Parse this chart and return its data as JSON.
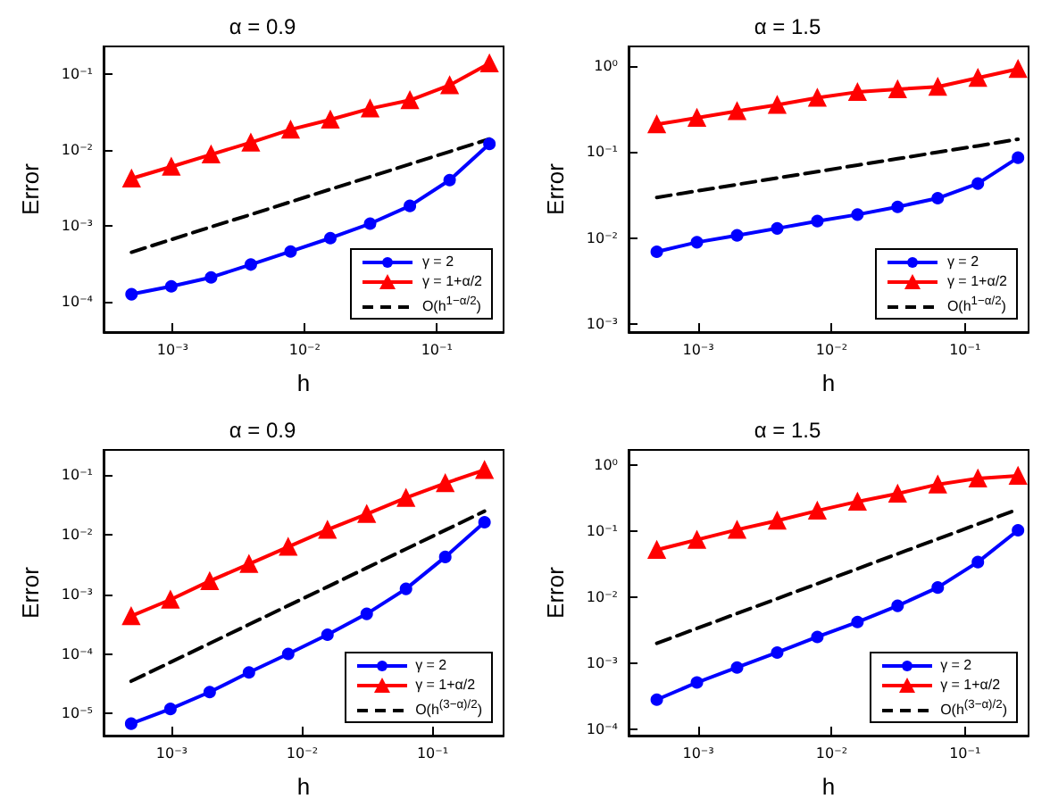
{
  "chart_data": [
    {
      "type": "line",
      "title": "α = 0.9",
      "xlabel": "h",
      "ylabel": "Error",
      "log": "xy",
      "grid": false,
      "legend": "bottom right",
      "x": [
        0.00048828125,
        0.0009765625,
        0.001953125,
        0.00390625,
        0.0078125,
        0.015625,
        0.03125,
        0.0625,
        0.125,
        0.25
      ],
      "xlim": [
        0.0003,
        0.32
      ],
      "ylim": [
        4e-05,
        0.23
      ],
      "xticks": [
        {
          "value": 0.001,
          "label": "10⁻³"
        },
        {
          "value": 0.01,
          "label": "10⁻²"
        },
        {
          "value": 0.1,
          "label": "10⁻¹"
        }
      ],
      "yticks": [
        {
          "value": 0.0001,
          "label": "10⁻⁴"
        },
        {
          "value": 0.001,
          "label": "10⁻³"
        },
        {
          "value": 0.01,
          "label": "10⁻²"
        },
        {
          "value": 0.1,
          "label": "10⁻¹"
        }
      ],
      "series": [
        {
          "name": "γ = 2",
          "color": "#0000ff",
          "marker": "circle",
          "line_style": "solid",
          "values": [
            0.000126,
            0.00016,
            0.00021,
            0.00031,
            0.00046,
            0.00069,
            0.00107,
            0.00183,
            0.004,
            0.012
          ]
        },
        {
          "name": "γ = 1+α/2",
          "color": "#ff0000",
          "marker": "triangle",
          "line_style": "solid",
          "values": [
            0.0042,
            0.006,
            0.0087,
            0.0125,
            0.0185,
            0.025,
            0.035,
            0.045,
            0.071,
            0.138
          ]
        },
        {
          "name": "O(h$^{1−α/2}$)",
          "color": "#000000",
          "marker": "none",
          "line_style": "dashed",
          "values": [
            0.00045,
            0.00066,
            0.00097,
            0.00141,
            0.00207,
            0.00303,
            0.00443,
            0.0065,
            0.0095,
            0.0139
          ]
        }
      ]
    },
    {
      "type": "line",
      "title": "α = 1.5",
      "xlabel": "h",
      "ylabel": "Error",
      "log": "xy",
      "grid": false,
      "legend": "bottom right",
      "x": [
        0.00048828125,
        0.0009765625,
        0.001953125,
        0.00390625,
        0.0078125,
        0.015625,
        0.03125,
        0.0625,
        0.125,
        0.25
      ],
      "xlim": [
        0.0003,
        0.3
      ],
      "ylim": [
        0.0008,
        1.7
      ],
      "xticks": [
        {
          "value": 0.001,
          "label": "10⁻³"
        },
        {
          "value": 0.01,
          "label": "10⁻²"
        },
        {
          "value": 0.1,
          "label": "10⁻¹"
        }
      ],
      "yticks": [
        {
          "value": 0.001,
          "label": "10⁻³"
        },
        {
          "value": 0.01,
          "label": "10⁻²"
        },
        {
          "value": 0.1,
          "label": "10⁻¹"
        },
        {
          "value": 1,
          "label": "10⁰"
        }
      ],
      "series": [
        {
          "name": "γ = 2",
          "color": "#0000ff",
          "marker": "circle",
          "line_style": "solid",
          "values": [
            0.0069,
            0.0089,
            0.0107,
            0.0129,
            0.0157,
            0.0187,
            0.023,
            0.029,
            0.043,
            0.086
          ]
        },
        {
          "name": "γ = 1+α/2",
          "color": "#ff0000",
          "marker": "triangle",
          "line_style": "solid",
          "values": [
            0.21,
            0.25,
            0.3,
            0.355,
            0.43,
            0.5,
            0.54,
            0.575,
            0.73,
            0.93
          ]
        },
        {
          "name": "O(h$^{1−α/2}$)",
          "color": "#000000",
          "marker": "none",
          "line_style": "dashed",
          "values": [
            0.0296,
            0.0352,
            0.0419,
            0.0498,
            0.0592,
            0.0704,
            0.0837,
            0.0996,
            0.118,
            0.141
          ]
        }
      ]
    },
    {
      "type": "line",
      "title": "α = 0.9",
      "xlabel": "h",
      "ylabel": "Error",
      "log": "xy",
      "grid": false,
      "legend": "bottom right",
      "x": [
        0.00048828125,
        0.0009765625,
        0.001953125,
        0.00390625,
        0.0078125,
        0.015625,
        0.03125,
        0.0625,
        0.125,
        0.25
      ],
      "xlim": [
        0.0003,
        0.35
      ],
      "ylim": [
        4.3e-06,
        0.26
      ],
      "xticks": [
        {
          "value": 0.001,
          "label": "10⁻³"
        },
        {
          "value": 0.01,
          "label": "10⁻²"
        },
        {
          "value": 0.1,
          "label": "10⁻¹"
        }
      ],
      "yticks": [
        {
          "value": 1e-05,
          "label": "10⁻⁵"
        },
        {
          "value": 0.0001,
          "label": "10⁻⁴"
        },
        {
          "value": 0.001,
          "label": "10⁻³"
        },
        {
          "value": 0.01,
          "label": "10⁻²"
        },
        {
          "value": 0.1,
          "label": "10⁻¹"
        }
      ],
      "series": [
        {
          "name": "γ = 2",
          "color": "#0000ff",
          "marker": "circle",
          "line_style": "solid",
          "values": [
            6.8e-06,
            1.2e-05,
            2.3e-05,
            4.9e-05,
            0.0001,
            0.00021,
            0.00047,
            0.00123,
            0.0042,
            0.016
          ]
        },
        {
          "name": "γ = 1+α/2",
          "color": "#ff0000",
          "marker": "triangle",
          "line_style": "solid",
          "values": [
            0.00043,
            0.00081,
            0.00166,
            0.0032,
            0.0062,
            0.012,
            0.022,
            0.041,
            0.072,
            0.12
          ]
        },
        {
          "name": "O(h$^{(3−α)/2}$)",
          "color": "#000000",
          "marker": "none",
          "line_style": "dashed",
          "values": [
            3.5e-05,
            7.25e-05,
            0.00015,
            0.000311,
            0.000644,
            0.00133,
            0.00276,
            0.00572,
            0.0118,
            0.0245
          ]
        }
      ]
    },
    {
      "type": "line",
      "title": "α = 1.5",
      "xlabel": "h",
      "ylabel": "Error",
      "log": "xy",
      "grid": false,
      "legend": "bottom right",
      "x": [
        0.00048828125,
        0.0009765625,
        0.001953125,
        0.00390625,
        0.0078125,
        0.015625,
        0.03125,
        0.0625,
        0.125,
        0.25
      ],
      "xlim": [
        0.0003,
        0.3
      ],
      "ylim": [
        8e-05,
        1.7
      ],
      "xticks": [
        {
          "value": 0.001,
          "label": "10⁻³"
        },
        {
          "value": 0.01,
          "label": "10⁻²"
        },
        {
          "value": 0.1,
          "label": "10⁻¹"
        }
      ],
      "yticks": [
        {
          "value": 0.0001,
          "label": "10⁻⁴"
        },
        {
          "value": 0.001,
          "label": "10⁻³"
        },
        {
          "value": 0.01,
          "label": "10⁻²"
        },
        {
          "value": 0.1,
          "label": "10⁻¹"
        },
        {
          "value": 1,
          "label": "10⁰"
        }
      ],
      "series": [
        {
          "name": "γ = 2",
          "color": "#0000ff",
          "marker": "circle",
          "line_style": "solid",
          "values": [
            0.00028,
            0.00051,
            0.00086,
            0.00145,
            0.0025,
            0.0042,
            0.0074,
            0.014,
            0.034,
            0.103
          ]
        },
        {
          "name": "γ = 1+α/2",
          "color": "#ff0000",
          "marker": "triangle",
          "line_style": "solid",
          "values": [
            0.052,
            0.074,
            0.105,
            0.144,
            0.204,
            0.28,
            0.37,
            0.51,
            0.63,
            0.69
          ]
        },
        {
          "name": "O(h$^{(3−α)/2}$)",
          "color": "#000000",
          "marker": "none",
          "line_style": "dashed",
          "values": [
            0.002,
            0.00336,
            0.00566,
            0.00951,
            0.016,
            0.0269,
            0.0453,
            0.0761,
            0.128,
            0.215
          ]
        }
      ]
    }
  ]
}
